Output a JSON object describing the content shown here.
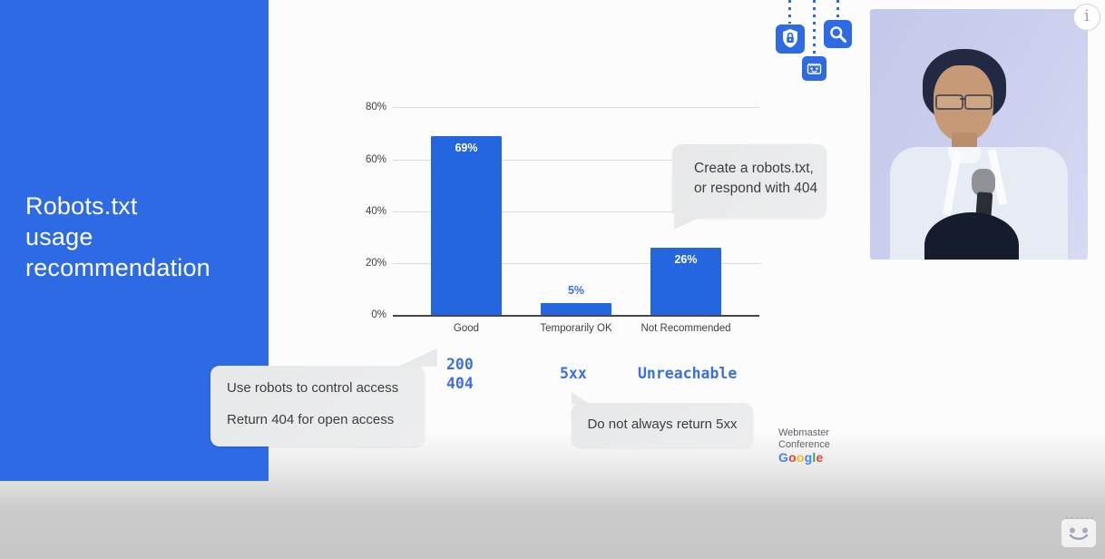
{
  "slide": {
    "title_lines": [
      "Robots.txt",
      "usage",
      "recommendation"
    ],
    "panel_color": "#2d6ae3"
  },
  "chart_data": {
    "type": "bar",
    "title": "Robots.txt usage recommendation",
    "categories": [
      "Good",
      "Temporarily OK",
      "Not Recommended"
    ],
    "values": [
      69,
      5,
      26
    ],
    "value_labels": [
      "69%",
      "5%",
      "26%"
    ],
    "y_ticks": [
      "0%",
      "20%",
      "40%",
      "60%",
      "80%"
    ],
    "ylim": [
      0,
      80
    ],
    "grid": true,
    "legend": false,
    "bar_color": "#2465e0",
    "xlabel": "",
    "ylabel": ""
  },
  "status_codes": {
    "good": [
      "200",
      "404"
    ],
    "temporarily_ok": "5xx",
    "not_recommended": "Unreachable",
    "color": "#3d6fe2"
  },
  "callouts": {
    "create_robots_line1": "Create a robots.txt,",
    "create_robots_line2": "or respond with 404",
    "use_robots_line1": "Use robots to control access",
    "use_robots_line2": "Return 404 for open access",
    "no_5xx": "Do not always return 5xx"
  },
  "branding": {
    "conference_line1": "Webmaster",
    "conference_line2": "Conference",
    "google_letters": [
      {
        "ch": "G",
        "color": "#4285F4"
      },
      {
        "ch": "o",
        "color": "#EA4335"
      },
      {
        "ch": "o",
        "color": "#FBBC05"
      },
      {
        "ch": "g",
        "color": "#4285F4"
      },
      {
        "ch": "l",
        "color": "#34A853"
      },
      {
        "ch": "e",
        "color": "#EA4335"
      }
    ]
  },
  "icons": {
    "hanging": [
      "shield-lock-icon",
      "crawler-bot-icon",
      "search-icon"
    ],
    "watermark": "crawler-bot-icon",
    "info": "info-icon"
  },
  "video_overlay": {
    "info_glyph": "i"
  }
}
